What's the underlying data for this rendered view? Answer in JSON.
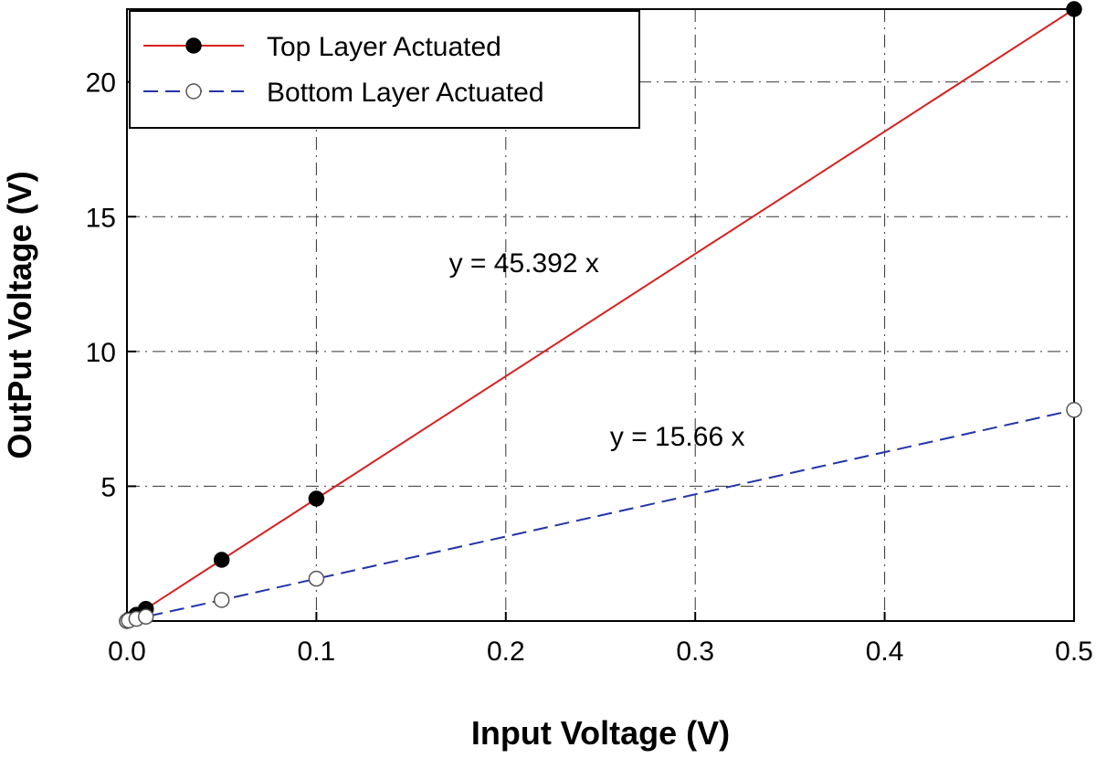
{
  "chart_data": {
    "type": "line",
    "title": "",
    "xlabel": "Input Voltage (V)",
    "ylabel": "OutPut Voltage (V)",
    "xlim": [
      0,
      0.5
    ],
    "ylim": [
      0,
      22.7
    ],
    "x_ticks": [
      "0.0",
      "0.1",
      "0.2",
      "0.3",
      "0.4",
      "0.5"
    ],
    "x_tick_values": [
      0,
      0.1,
      0.2,
      0.3,
      0.4,
      0.5
    ],
    "y_ticks": [
      "5",
      "10",
      "15",
      "20"
    ],
    "y_tick_values": [
      5,
      10,
      15,
      20
    ],
    "grid": true,
    "legend_position": "top-left",
    "series": [
      {
        "name": "Top Layer Actuated",
        "color": "#d92020",
        "line_style": "solid",
        "marker": "filled-circle",
        "x": [
          0,
          0.001,
          0.005,
          0.01,
          0.05,
          0.1,
          0.5
        ],
        "y": [
          0,
          0.05,
          0.23,
          0.45,
          2.27,
          4.54,
          22.7
        ]
      },
      {
        "name": "Bottom Layer Actuated",
        "color": "#2233aa",
        "line_style": "dashed",
        "marker": "open-circle",
        "x": [
          0,
          0.001,
          0.005,
          0.01,
          0.05,
          0.1,
          0.5
        ],
        "y": [
          0,
          0.02,
          0.08,
          0.16,
          0.78,
          1.57,
          7.83
        ]
      }
    ],
    "annotations": [
      {
        "text": "y = 45.392 x",
        "x": 0.17,
        "y": 12.95
      },
      {
        "text": "y = 15.66 x",
        "x": 0.255,
        "y": 6.5
      }
    ]
  }
}
